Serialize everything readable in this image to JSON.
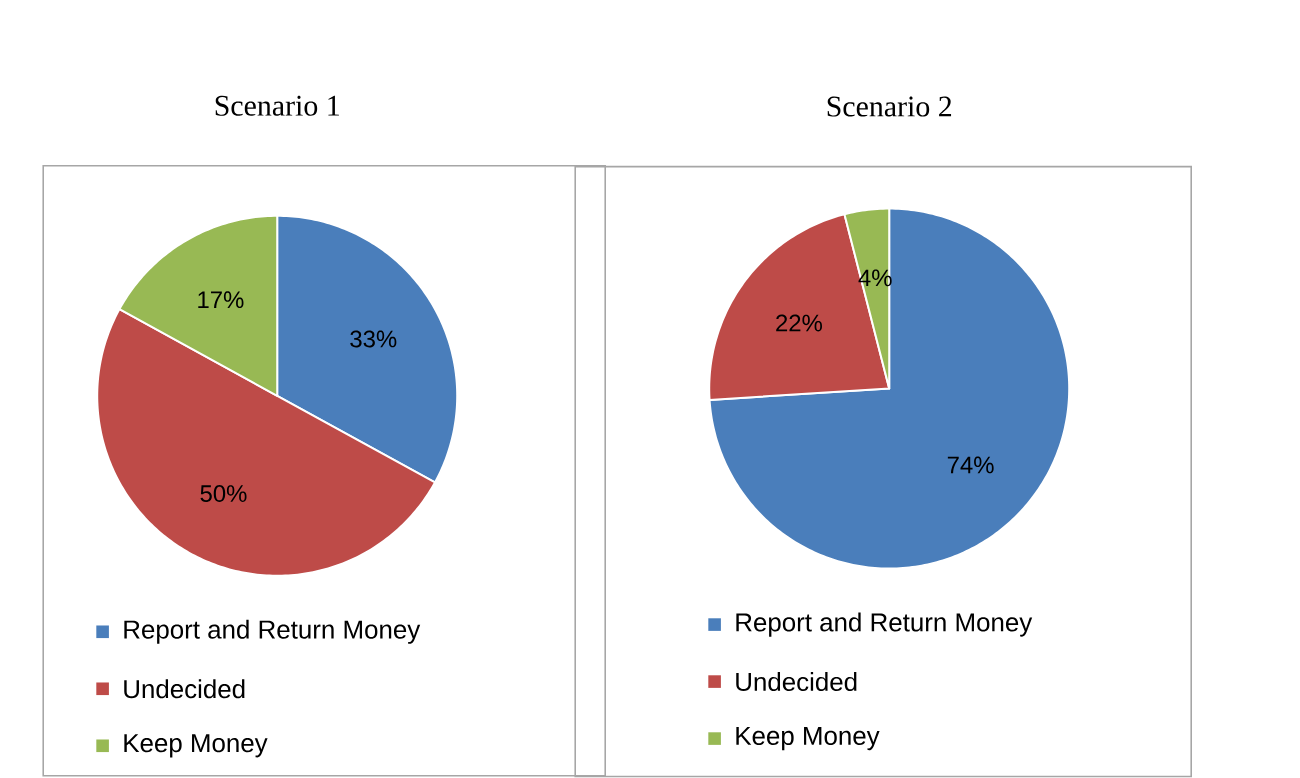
{
  "chart_data": [
    {
      "type": "pie",
      "title": "Scenario 1",
      "categories": [
        "Report and Return Money",
        "Undecided",
        "Keep Money"
      ],
      "values": [
        33,
        50,
        17
      ],
      "colors": [
        "#4a7ebb",
        "#be4b48",
        "#98b954"
      ],
      "value_labels": [
        "33%",
        "50%",
        "17%"
      ],
      "legend": "bottom"
    },
    {
      "type": "pie",
      "title": "Scenario 2",
      "categories": [
        "Report and Return Money",
        "Undecided",
        "Keep Money"
      ],
      "values": [
        74,
        22,
        4
      ],
      "colors": [
        "#4a7ebb",
        "#be4b48",
        "#98b954"
      ],
      "value_labels": [
        "74%",
        "22%",
        "4%"
      ],
      "legend": "bottom"
    }
  ]
}
